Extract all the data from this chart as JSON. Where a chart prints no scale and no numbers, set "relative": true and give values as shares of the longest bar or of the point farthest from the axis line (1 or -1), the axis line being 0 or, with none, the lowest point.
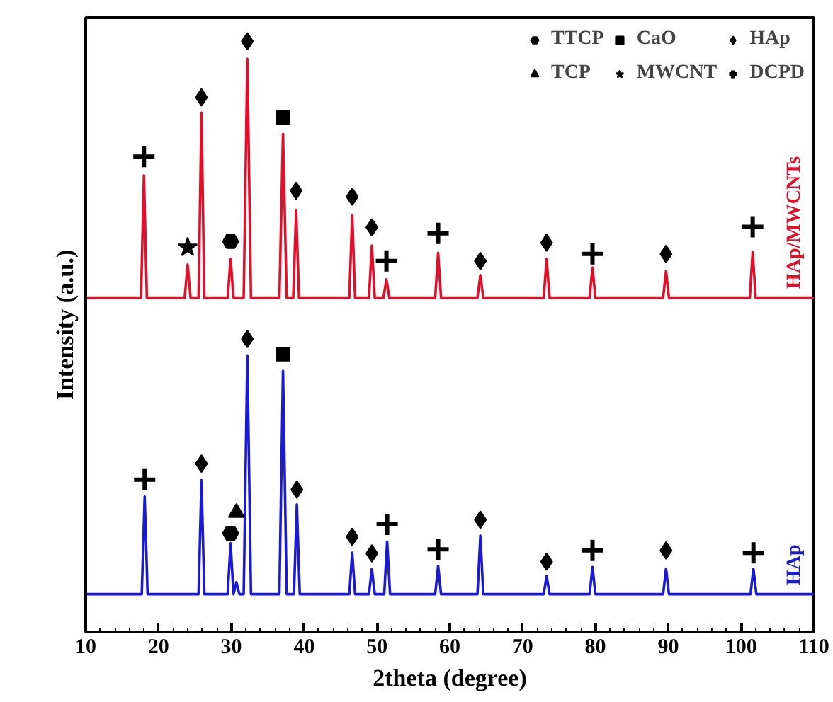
{
  "chart_data": {
    "type": "line",
    "relative": true,
    "xlabel": "2theta (degree)",
    "ylabel": "Intensity (a.u.)",
    "xlim": [
      10,
      110
    ],
    "xticks": [
      10,
      20,
      30,
      40,
      50,
      60,
      70,
      80,
      90,
      100,
      110
    ],
    "grid": false,
    "legend": "top right",
    "series": [
      {
        "name": "HAp/MWCNTs",
        "color": "#e0102a",
        "x": [
          10,
          17.6,
          18.0,
          18.4,
          23.6,
          24.0,
          24.4,
          25.5,
          25.9,
          26.3,
          29.5,
          29.9,
          30.3,
          31.7,
          32.2,
          32.7,
          36.6,
          37.1,
          37.6,
          38.5,
          38.9,
          39.3,
          46.2,
          46.6,
          47.0,
          48.9,
          49.3,
          49.7,
          50.9,
          51.3,
          51.7,
          58.0,
          58.4,
          58.8,
          63.8,
          64.2,
          64.6,
          72.9,
          73.3,
          73.7,
          79.2,
          79.6,
          80.0,
          89.3,
          89.7,
          90.1,
          101.2,
          101.6,
          102.0,
          110
        ],
        "values": [
          0.566,
          0.566,
          0.773,
          0.566,
          0.566,
          0.622,
          0.566,
          0.566,
          0.879,
          0.566,
          0.566,
          0.632,
          0.566,
          0.566,
          0.97,
          0.566,
          0.566,
          0.843,
          0.566,
          0.566,
          0.714,
          0.566,
          0.566,
          0.706,
          0.566,
          0.566,
          0.654,
          0.566,
          0.566,
          0.597,
          0.566,
          0.566,
          0.642,
          0.566,
          0.566,
          0.604,
          0.566,
          0.566,
          0.632,
          0.566,
          0.566,
          0.617,
          0.566,
          0.566,
          0.611,
          0.566,
          0.566,
          0.644,
          0.566,
          0.566
        ]
      },
      {
        "name": "HAp",
        "color": "#1a1ad0",
        "x": [
          10,
          17.7,
          18.1,
          18.5,
          25.5,
          25.9,
          26.3,
          29.5,
          29.9,
          30.3,
          30.7,
          31.1,
          31.7,
          32.2,
          32.7,
          36.6,
          37.1,
          37.6,
          38.6,
          39.0,
          39.4,
          46.2,
          46.6,
          47.0,
          48.9,
          49.3,
          49.7,
          51.0,
          51.4,
          51.8,
          58.0,
          58.4,
          58.8,
          63.8,
          64.2,
          64.6,
          72.9,
          73.3,
          73.7,
          79.2,
          79.6,
          80.0,
          89.3,
          89.7,
          90.1,
          101.3,
          101.7,
          102.1,
          110
        ],
        "values": [
          0.064,
          0.064,
          0.229,
          0.064,
          0.064,
          0.257,
          0.064,
          0.064,
          0.15,
          0.064,
          0.084,
          0.064,
          0.064,
          0.468,
          0.064,
          0.064,
          0.442,
          0.064,
          0.064,
          0.216,
          0.064,
          0.064,
          0.134,
          0.064,
          0.064,
          0.107,
          0.064,
          0.064,
          0.153,
          0.064,
          0.064,
          0.112,
          0.064,
          0.064,
          0.163,
          0.064,
          0.064,
          0.095,
          0.064,
          0.064,
          0.11,
          0.064,
          0.064,
          0.107,
          0.064,
          0.064,
          0.107,
          0.064,
          0.064
        ]
      },
      {
        "name": "TTCP",
        "type": "scatter",
        "marker": "circle",
        "color": "#000000",
        "x": [
          29.9,
          29.9
        ],
        "values": [
          0.661,
          0.167
        ]
      },
      {
        "name": "CaO",
        "type": "scatter",
        "marker": "square",
        "color": "#000000",
        "x": [
          37.1,
          37.1
        ],
        "values": [
          0.871,
          0.47
        ]
      },
      {
        "name": "HAp",
        "type": "scatter",
        "marker": "diamond",
        "color": "#000000",
        "x": [
          25.9,
          32.2,
          38.9,
          46.6,
          49.3,
          64.2,
          73.3,
          89.7,
          25.9,
          32.2,
          39.0,
          46.6,
          49.3,
          64.2,
          73.3,
          89.7
        ],
        "values": [
          0.905,
          1.0,
          0.747,
          0.737,
          0.685,
          0.628,
          0.659,
          0.64,
          0.285,
          0.496,
          0.241,
          0.161,
          0.133,
          0.19,
          0.119,
          0.138
        ]
      },
      {
        "name": "TCP",
        "type": "scatter",
        "marker": "triangle",
        "color": "#000000",
        "x": [
          30.7
        ],
        "values": [
          0.202
        ]
      },
      {
        "name": "MWCNT",
        "type": "scatter",
        "marker": "star",
        "color": "#000000",
        "x": [
          24.0
        ],
        "values": [
          0.651
        ]
      },
      {
        "name": "DCPD",
        "type": "scatter",
        "marker": "cross",
        "color": "#000000",
        "x": [
          18.0,
          51.3,
          58.4,
          79.6,
          101.6,
          18.1,
          51.4,
          58.4,
          79.6,
          101.7
        ],
        "values": [
          0.805,
          0.628,
          0.675,
          0.64,
          0.686,
          0.258,
          0.182,
          0.14,
          0.138,
          0.134
        ]
      }
    ]
  }
}
